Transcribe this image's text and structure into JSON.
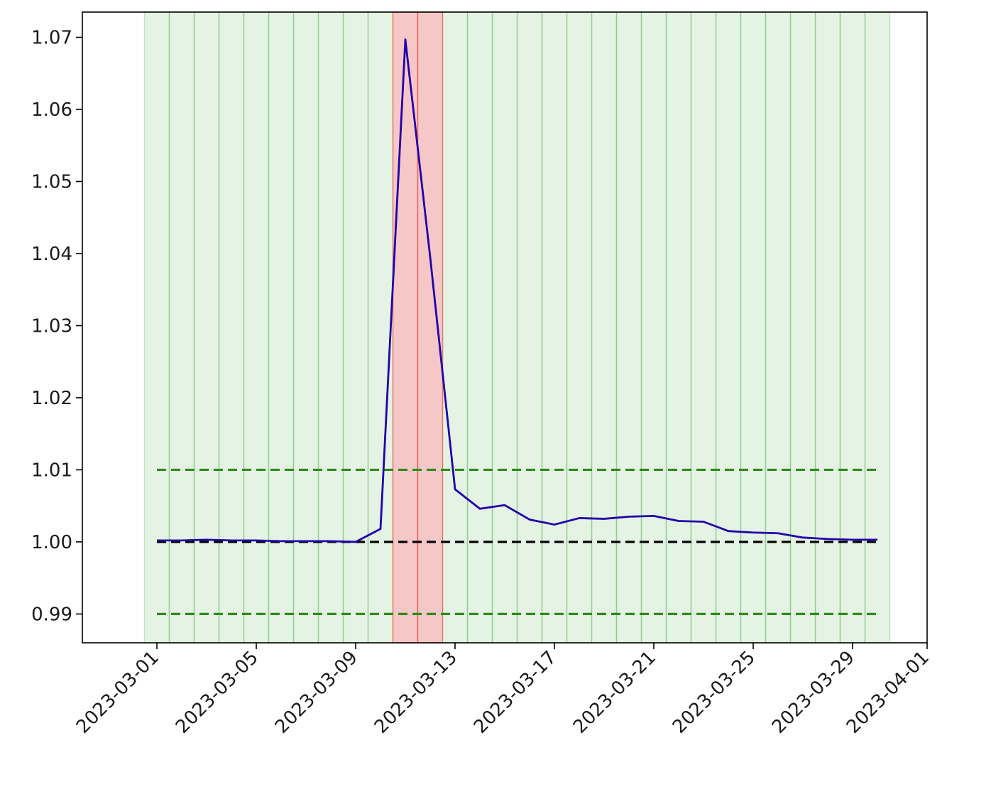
{
  "chart_data": {
    "type": "line",
    "title": "",
    "xlabel": "",
    "ylabel": "",
    "x_axis_type": "date",
    "xlim": [
      "2023-02-26",
      "2023-04-01"
    ],
    "ylim": [
      0.986,
      1.0735
    ],
    "x_ticks": [
      "2023-03-01",
      "2023-03-05",
      "2023-03-09",
      "2023-03-13",
      "2023-03-17",
      "2023-03-21",
      "2023-03-25",
      "2023-03-29",
      "2023-04-01"
    ],
    "y_ticks": [
      0.99,
      1.0,
      1.01,
      1.02,
      1.03,
      1.04,
      1.05,
      1.06,
      1.07
    ],
    "y_tick_labels": [
      "0.99",
      "1.00",
      "1.01",
      "1.02",
      "1.03",
      "1.04",
      "1.05",
      "1.06",
      "1.07"
    ],
    "grid": false,
    "series": [
      {
        "color": "#2200aa",
        "style": "solid",
        "x": [
          "2023-03-01",
          "2023-03-02",
          "2023-03-03",
          "2023-03-04",
          "2023-03-05",
          "2023-03-06",
          "2023-03-07",
          "2023-03-08",
          "2023-03-09",
          "2023-03-10",
          "2023-03-11",
          "2023-03-12",
          "2023-03-13",
          "2023-03-14",
          "2023-03-15",
          "2023-03-16",
          "2023-03-17",
          "2023-03-18",
          "2023-03-19",
          "2023-03-20",
          "2023-03-21",
          "2023-03-22",
          "2023-03-23",
          "2023-03-24",
          "2023-03-25",
          "2023-03-26",
          "2023-03-27",
          "2023-03-28",
          "2023-03-29",
          "2023-03-30"
        ],
        "values": [
          1.0002,
          1.0002,
          1.0003,
          1.0002,
          1.0002,
          1.0001,
          1.0001,
          1.0001,
          1.0,
          1.0018,
          1.0697,
          1.0395,
          1.0073,
          1.0046,
          1.0051,
          1.0031,
          1.0024,
          1.0033,
          1.0032,
          1.0035,
          1.0036,
          1.0029,
          1.0028,
          1.0015,
          1.0013,
          1.0012,
          1.0006,
          1.0004,
          1.0003,
          1.0003
        ]
      },
      {
        "color": "#000000",
        "style": "dashed",
        "x": [
          "2023-03-01",
          "2023-03-30"
        ],
        "values": [
          1.0,
          1.0
        ]
      },
      {
        "color": "#2e8b1a",
        "style": "dashed",
        "x": [
          "2023-03-01",
          "2023-03-30"
        ],
        "values": [
          1.01,
          1.01
        ]
      },
      {
        "color": "#2e8b1a",
        "style": "dashed",
        "x": [
          "2023-03-01",
          "2023-03-30"
        ],
        "values": [
          0.99,
          0.99
        ]
      }
    ],
    "shaded_spans": {
      "green_color": "#2ca02c",
      "red_color": "#e8312a",
      "green_days": [
        "2023-03-01",
        "2023-03-02",
        "2023-03-03",
        "2023-03-04",
        "2023-03-05",
        "2023-03-06",
        "2023-03-07",
        "2023-03-08",
        "2023-03-09",
        "2023-03-10",
        "2023-03-13",
        "2023-03-14",
        "2023-03-15",
        "2023-03-16",
        "2023-03-17",
        "2023-03-18",
        "2023-03-19",
        "2023-03-20",
        "2023-03-21",
        "2023-03-22",
        "2023-03-23",
        "2023-03-24",
        "2023-03-25",
        "2023-03-26",
        "2023-03-27",
        "2023-03-28",
        "2023-03-29",
        "2023-03-30"
      ],
      "red_days": [
        "2023-03-11",
        "2023-03-12"
      ]
    }
  }
}
